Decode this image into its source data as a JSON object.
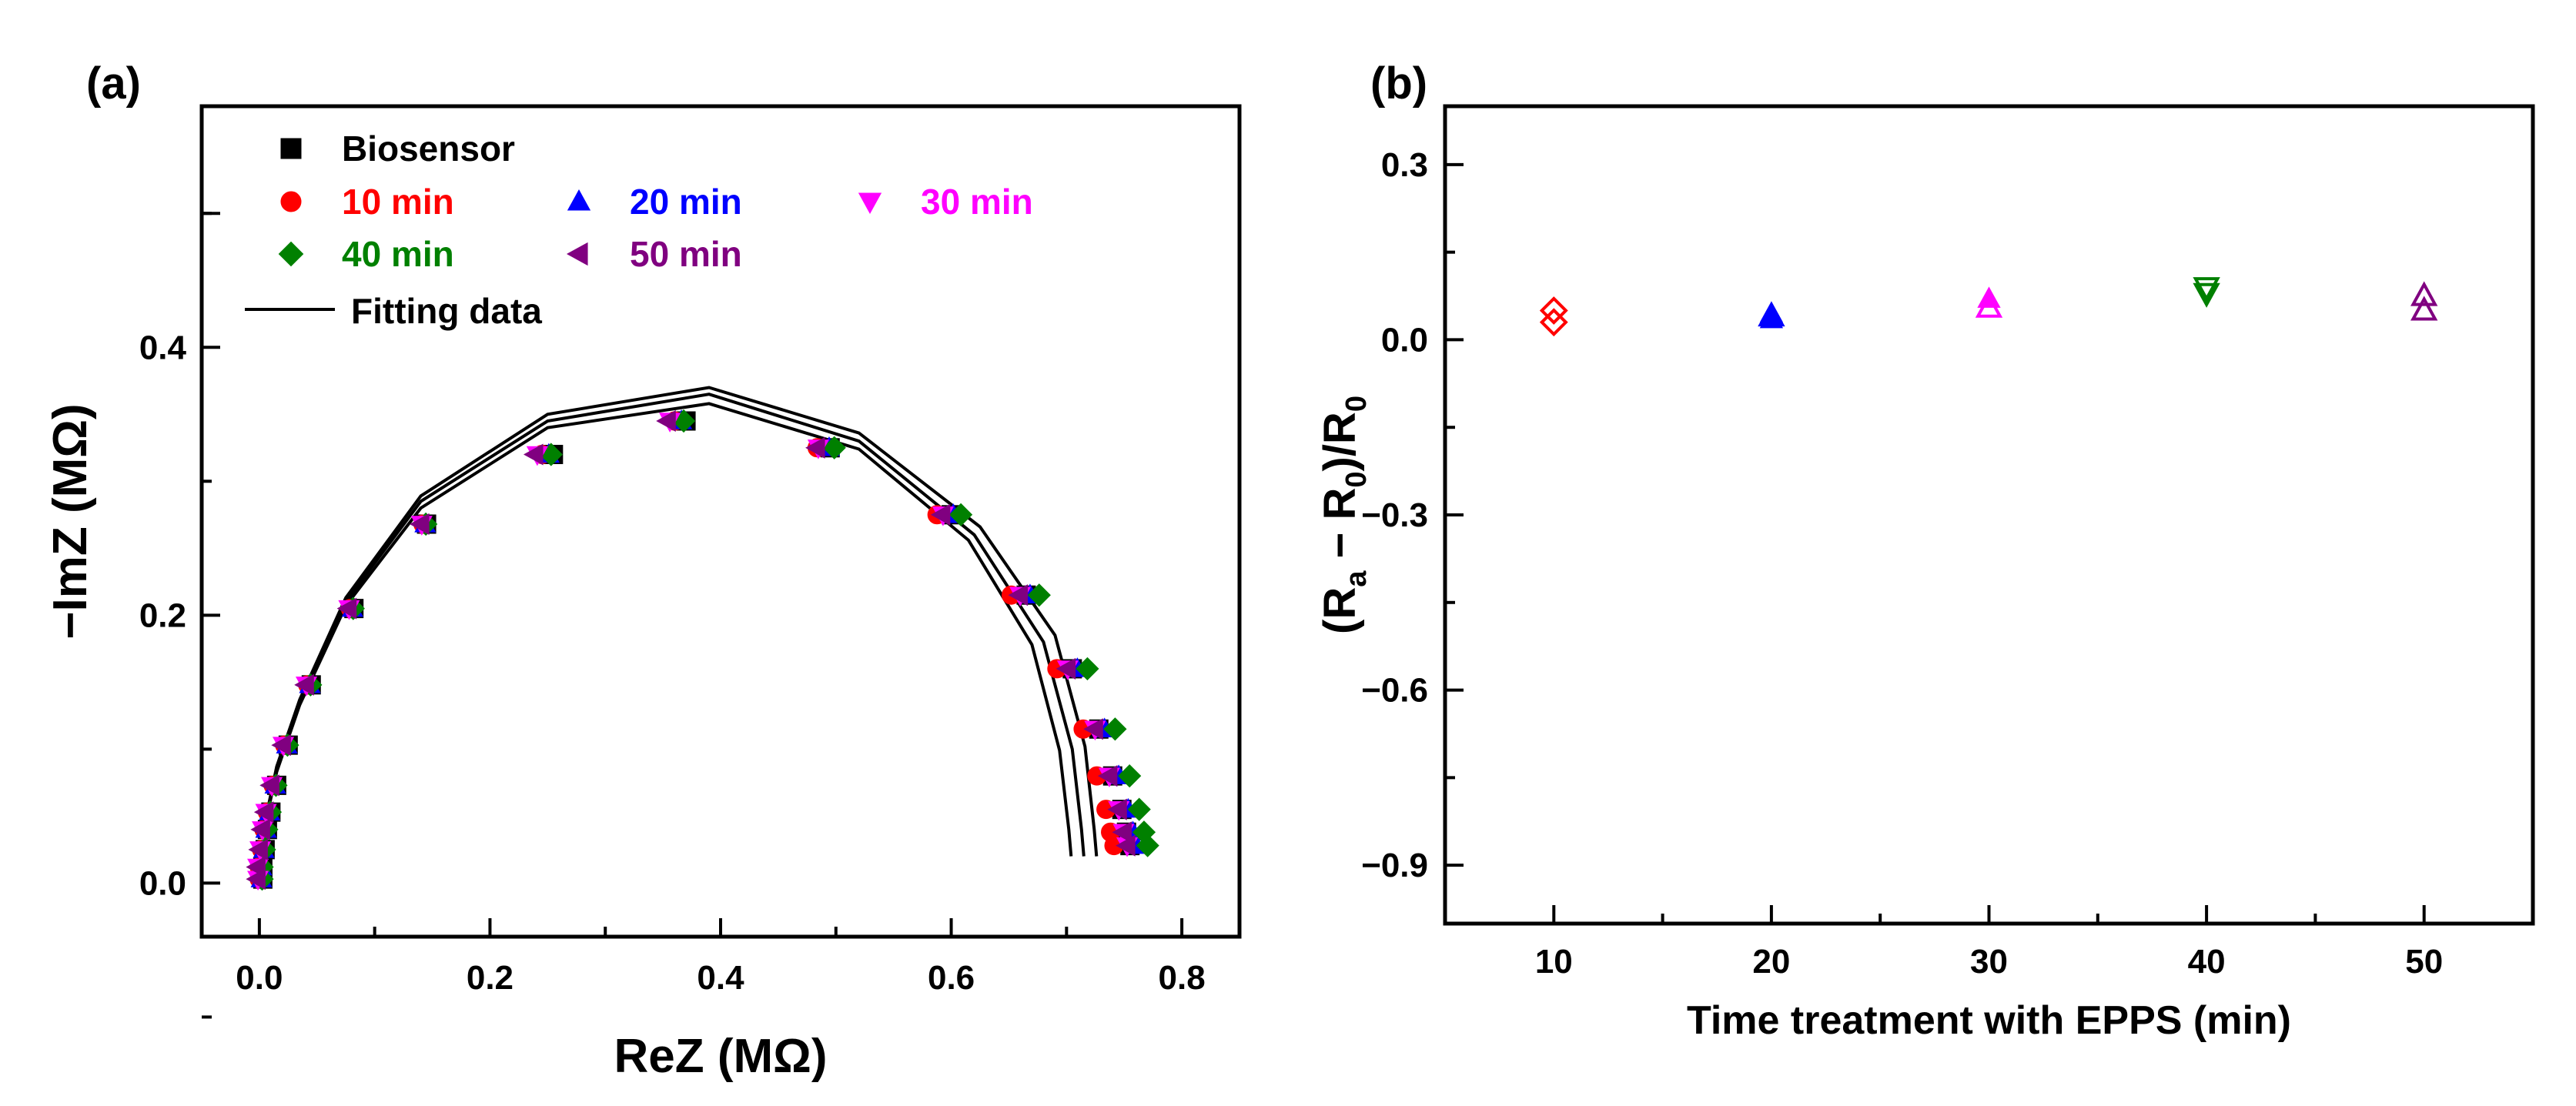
{
  "panels": {
    "a": {
      "letter": "(a)"
    },
    "b": {
      "letter": "(b)"
    }
  },
  "chart_data": [
    {
      "type": "scatter",
      "xlabel": "ReZ (MΩ)",
      "ylabel": "−ImZ (MΩ)",
      "xlim": [
        -0.05,
        0.85
      ],
      "ylim": [
        -0.04,
        0.58
      ],
      "x_ticks": [
        0.0,
        0.2,
        0.4,
        0.6,
        0.8
      ],
      "x_tick_labels": [
        "0.0",
        "0.2",
        "0.4",
        "0.6",
        "0.8"
      ],
      "y_ticks": [
        0.0,
        0.2,
        0.4
      ],
      "y_tick_labels": [
        "0.0",
        "0.2",
        "0.4"
      ],
      "legend_placement": "top-left",
      "legend": [
        {
          "label": "Biosensor",
          "marker": "square",
          "color": "#000000"
        },
        {
          "label": "10 min",
          "marker": "circle",
          "color": "#ff0000"
        },
        {
          "label": "20 min",
          "marker": "triangle-up",
          "color": "#0000ff"
        },
        {
          "label": "30 min",
          "marker": "triangle-down",
          "color": "#ff00ff"
        },
        {
          "label": "40 min",
          "marker": "diamond",
          "color": "#008000"
        },
        {
          "label": "50 min",
          "marker": "triangle-left",
          "color": "#800080"
        },
        {
          "label": "Fitting data",
          "marker": "line",
          "color": "#000000"
        }
      ],
      "series": [
        {
          "name": "Biosensor",
          "marker": "square",
          "color": "#000000",
          "dx": 0.01,
          "rscale": 1.0,
          "points": [
            [
              0.0,
              0.003
            ],
            [
              0.0,
              0.012
            ],
            [
              0.002,
              0.025
            ],
            [
              0.004,
              0.04
            ],
            [
              0.007,
              0.053
            ],
            [
              0.012,
              0.073
            ],
            [
              0.022,
              0.103
            ],
            [
              0.042,
              0.148
            ],
            [
              0.079,
              0.205
            ],
            [
              0.142,
              0.268
            ],
            [
              0.245,
              0.32
            ],
            [
              0.36,
              0.345
            ],
            [
              0.485,
              0.325
            ],
            [
              0.59,
              0.275
            ],
            [
              0.655,
              0.215
            ],
            [
              0.695,
              0.16
            ],
            [
              0.718,
              0.115
            ],
            [
              0.73,
              0.08
            ],
            [
              0.738,
              0.055
            ],
            [
              0.742,
              0.038
            ],
            [
              0.745,
              0.028
            ]
          ]
        },
        {
          "name": "10 min",
          "marker": "circle",
          "color": "#ff0000",
          "dx": 0.0,
          "rscale": 0.99,
          "points": [
            [
              0.0,
              0.003
            ],
            [
              0.0,
              0.012
            ],
            [
              0.002,
              0.025
            ],
            [
              0.004,
              0.04
            ],
            [
              0.007,
              0.053
            ],
            [
              0.012,
              0.073
            ],
            [
              0.022,
              0.103
            ],
            [
              0.042,
              0.148
            ],
            [
              0.079,
              0.205
            ],
            [
              0.142,
              0.268
            ],
            [
              0.245,
              0.32
            ],
            [
              0.36,
              0.345
            ],
            [
              0.485,
              0.325
            ],
            [
              0.59,
              0.275
            ],
            [
              0.655,
              0.215
            ],
            [
              0.695,
              0.16
            ],
            [
              0.718,
              0.115
            ],
            [
              0.73,
              0.08
            ],
            [
              0.738,
              0.055
            ],
            [
              0.742,
              0.038
            ],
            [
              0.745,
              0.028
            ]
          ]
        },
        {
          "name": "20 min",
          "marker": "triangle-up",
          "color": "#0000ff",
          "dx": 0.006,
          "rscale": 1.025,
          "points": [
            [
              0.0,
              0.003
            ],
            [
              0.0,
              0.012
            ],
            [
              0.002,
              0.025
            ],
            [
              0.004,
              0.04
            ],
            [
              0.007,
              0.053
            ],
            [
              0.012,
              0.073
            ],
            [
              0.022,
              0.103
            ],
            [
              0.042,
              0.148
            ],
            [
              0.079,
              0.205
            ],
            [
              0.142,
              0.268
            ],
            [
              0.245,
              0.32
            ],
            [
              0.36,
              0.345
            ],
            [
              0.485,
              0.325
            ],
            [
              0.59,
              0.275
            ],
            [
              0.655,
              0.215
            ],
            [
              0.695,
              0.16
            ],
            [
              0.718,
              0.115
            ],
            [
              0.73,
              0.08
            ],
            [
              0.738,
              0.055
            ],
            [
              0.742,
              0.038
            ],
            [
              0.745,
              0.028
            ]
          ]
        },
        {
          "name": "30 min",
          "marker": "triangle-down",
          "color": "#ff00ff",
          "dx": -0.004,
          "rscale": 1.03,
          "points": [
            [
              0.0,
              0.003
            ],
            [
              0.0,
              0.012
            ],
            [
              0.002,
              0.025
            ],
            [
              0.004,
              0.04
            ],
            [
              0.007,
              0.053
            ],
            [
              0.012,
              0.073
            ],
            [
              0.022,
              0.103
            ],
            [
              0.042,
              0.148
            ],
            [
              0.079,
              0.205
            ],
            [
              0.142,
              0.268
            ],
            [
              0.245,
              0.32
            ],
            [
              0.36,
              0.345
            ],
            [
              0.485,
              0.325
            ],
            [
              0.59,
              0.275
            ],
            [
              0.655,
              0.215
            ],
            [
              0.695,
              0.16
            ],
            [
              0.718,
              0.115
            ],
            [
              0.73,
              0.08
            ],
            [
              0.738,
              0.055
            ],
            [
              0.742,
              0.038
            ],
            [
              0.745,
              0.028
            ]
          ]
        },
        {
          "name": "40 min",
          "marker": "diamond",
          "color": "#008000",
          "dx": 0.008,
          "rscale": 1.045,
          "points": [
            [
              0.0,
              0.003
            ],
            [
              0.0,
              0.012
            ],
            [
              0.002,
              0.025
            ],
            [
              0.004,
              0.04
            ],
            [
              0.007,
              0.053
            ],
            [
              0.012,
              0.073
            ],
            [
              0.022,
              0.103
            ],
            [
              0.042,
              0.148
            ],
            [
              0.079,
              0.205
            ],
            [
              0.142,
              0.268
            ],
            [
              0.245,
              0.32
            ],
            [
              0.36,
              0.345
            ],
            [
              0.485,
              0.325
            ],
            [
              0.59,
              0.275
            ],
            [
              0.655,
              0.215
            ],
            [
              0.695,
              0.16
            ],
            [
              0.718,
              0.115
            ],
            [
              0.73,
              0.08
            ],
            [
              0.738,
              0.055
            ],
            [
              0.742,
              0.038
            ],
            [
              0.745,
              0.028
            ]
          ]
        },
        {
          "name": "50 min",
          "marker": "triangle-left",
          "color": "#800080",
          "dx": -0.006,
          "rscale": 1.035,
          "points": [
            [
              0.0,
              0.003
            ],
            [
              0.0,
              0.012
            ],
            [
              0.002,
              0.025
            ],
            [
              0.004,
              0.04
            ],
            [
              0.007,
              0.053
            ],
            [
              0.012,
              0.073
            ],
            [
              0.022,
              0.103
            ],
            [
              0.042,
              0.148
            ],
            [
              0.079,
              0.205
            ],
            [
              0.142,
              0.268
            ],
            [
              0.245,
              0.32
            ],
            [
              0.36,
              0.345
            ],
            [
              0.485,
              0.325
            ],
            [
              0.59,
              0.275
            ],
            [
              0.655,
              0.215
            ],
            [
              0.695,
              0.16
            ],
            [
              0.718,
              0.115
            ],
            [
              0.73,
              0.08
            ],
            [
              0.738,
              0.055
            ],
            [
              0.742,
              0.038
            ],
            [
              0.745,
              0.028
            ]
          ]
        }
      ],
      "fits": [
        {
          "name": "Fitting data",
          "color": "#000000",
          "points": [
            [
              0.0,
              0.0
            ],
            [
              0.005,
              0.045
            ],
            [
              0.015,
              0.085
            ],
            [
              0.035,
              0.135
            ],
            [
              0.075,
              0.21
            ],
            [
              0.14,
              0.285
            ],
            [
              0.25,
              0.345
            ],
            [
              0.39,
              0.365
            ],
            [
              0.52,
              0.33
            ],
            [
              0.62,
              0.26
            ],
            [
              0.68,
              0.18
            ],
            [
              0.705,
              0.1
            ],
            [
              0.713,
              0.04
            ],
            [
              0.715,
              0.02
            ]
          ]
        },
        {
          "name": "Fitting data",
          "color": "#000000",
          "points": [
            [
              0.0,
              0.0
            ],
            [
              0.005,
              0.046
            ],
            [
              0.015,
              0.087
            ],
            [
              0.035,
              0.137
            ],
            [
              0.075,
              0.213
            ],
            [
              0.14,
              0.289
            ],
            [
              0.25,
              0.35
            ],
            [
              0.39,
              0.37
            ],
            [
              0.52,
              0.336
            ],
            [
              0.625,
              0.266
            ],
            [
              0.69,
              0.185
            ],
            [
              0.716,
              0.102
            ],
            [
              0.724,
              0.04
            ],
            [
              0.726,
              0.02
            ]
          ]
        },
        {
          "name": "Fitting data",
          "color": "#000000",
          "points": [
            [
              0.0,
              0.0
            ],
            [
              0.005,
              0.044
            ],
            [
              0.015,
              0.083
            ],
            [
              0.035,
              0.133
            ],
            [
              0.075,
              0.207
            ],
            [
              0.14,
              0.28
            ],
            [
              0.25,
              0.34
            ],
            [
              0.39,
              0.358
            ],
            [
              0.52,
              0.324
            ],
            [
              0.615,
              0.256
            ],
            [
              0.67,
              0.178
            ],
            [
              0.694,
              0.099
            ],
            [
              0.702,
              0.04
            ],
            [
              0.704,
              0.02
            ]
          ]
        }
      ]
    },
    {
      "type": "scatter",
      "xlabel": "Time treatment with EPPS (min)",
      "ylabel": "(Ra − R0)/R0",
      "xlim": [
        5,
        55
      ],
      "ylim": [
        -1.0,
        0.4
      ],
      "x_ticks": [
        10,
        20,
        30,
        40,
        50
      ],
      "x_tick_labels": [
        "10",
        "20",
        "30",
        "40",
        "50"
      ],
      "y_ticks": [
        0.3,
        0.0,
        -0.3,
        -0.6,
        -0.9
      ],
      "y_tick_labels": [
        "0.3",
        "0.0",
        "−0.3",
        "−0.6",
        "−0.9"
      ],
      "series": [
        {
          "name": "",
          "color": "#ff0000",
          "points": [
            {
              "x": 10,
              "y": 0.05,
              "marker": "diamond-open"
            },
            {
              "x": 10,
              "y": 0.03,
              "marker": "diamond-open"
            }
          ]
        },
        {
          "name": "",
          "color": "#0000ff",
          "points": [
            {
              "x": 20,
              "y": 0.045,
              "marker": "triangle-up"
            },
            {
              "x": 20,
              "y": 0.035,
              "marker": "triangle-up"
            },
            {
              "x": 20,
              "y": 0.04,
              "marker": "triangle-up-open"
            }
          ]
        },
        {
          "name": "",
          "color": "#ff00ff",
          "points": [
            {
              "x": 30,
              "y": 0.07,
              "marker": "triangle-up"
            },
            {
              "x": 30,
              "y": 0.055,
              "marker": "triangle-up-open"
            }
          ]
        },
        {
          "name": "",
          "color": "#008000",
          "points": [
            {
              "x": 40,
              "y": 0.09,
              "marker": "triangle-down-open"
            },
            {
              "x": 40,
              "y": 0.08,
              "marker": "triangle-down-open"
            }
          ]
        },
        {
          "name": "",
          "color": "#800080",
          "points": [
            {
              "x": 50,
              "y": 0.075,
              "marker": "triangle-up-open"
            },
            {
              "x": 50,
              "y": 0.05,
              "marker": "triangle-up-open"
            }
          ]
        }
      ]
    }
  ]
}
